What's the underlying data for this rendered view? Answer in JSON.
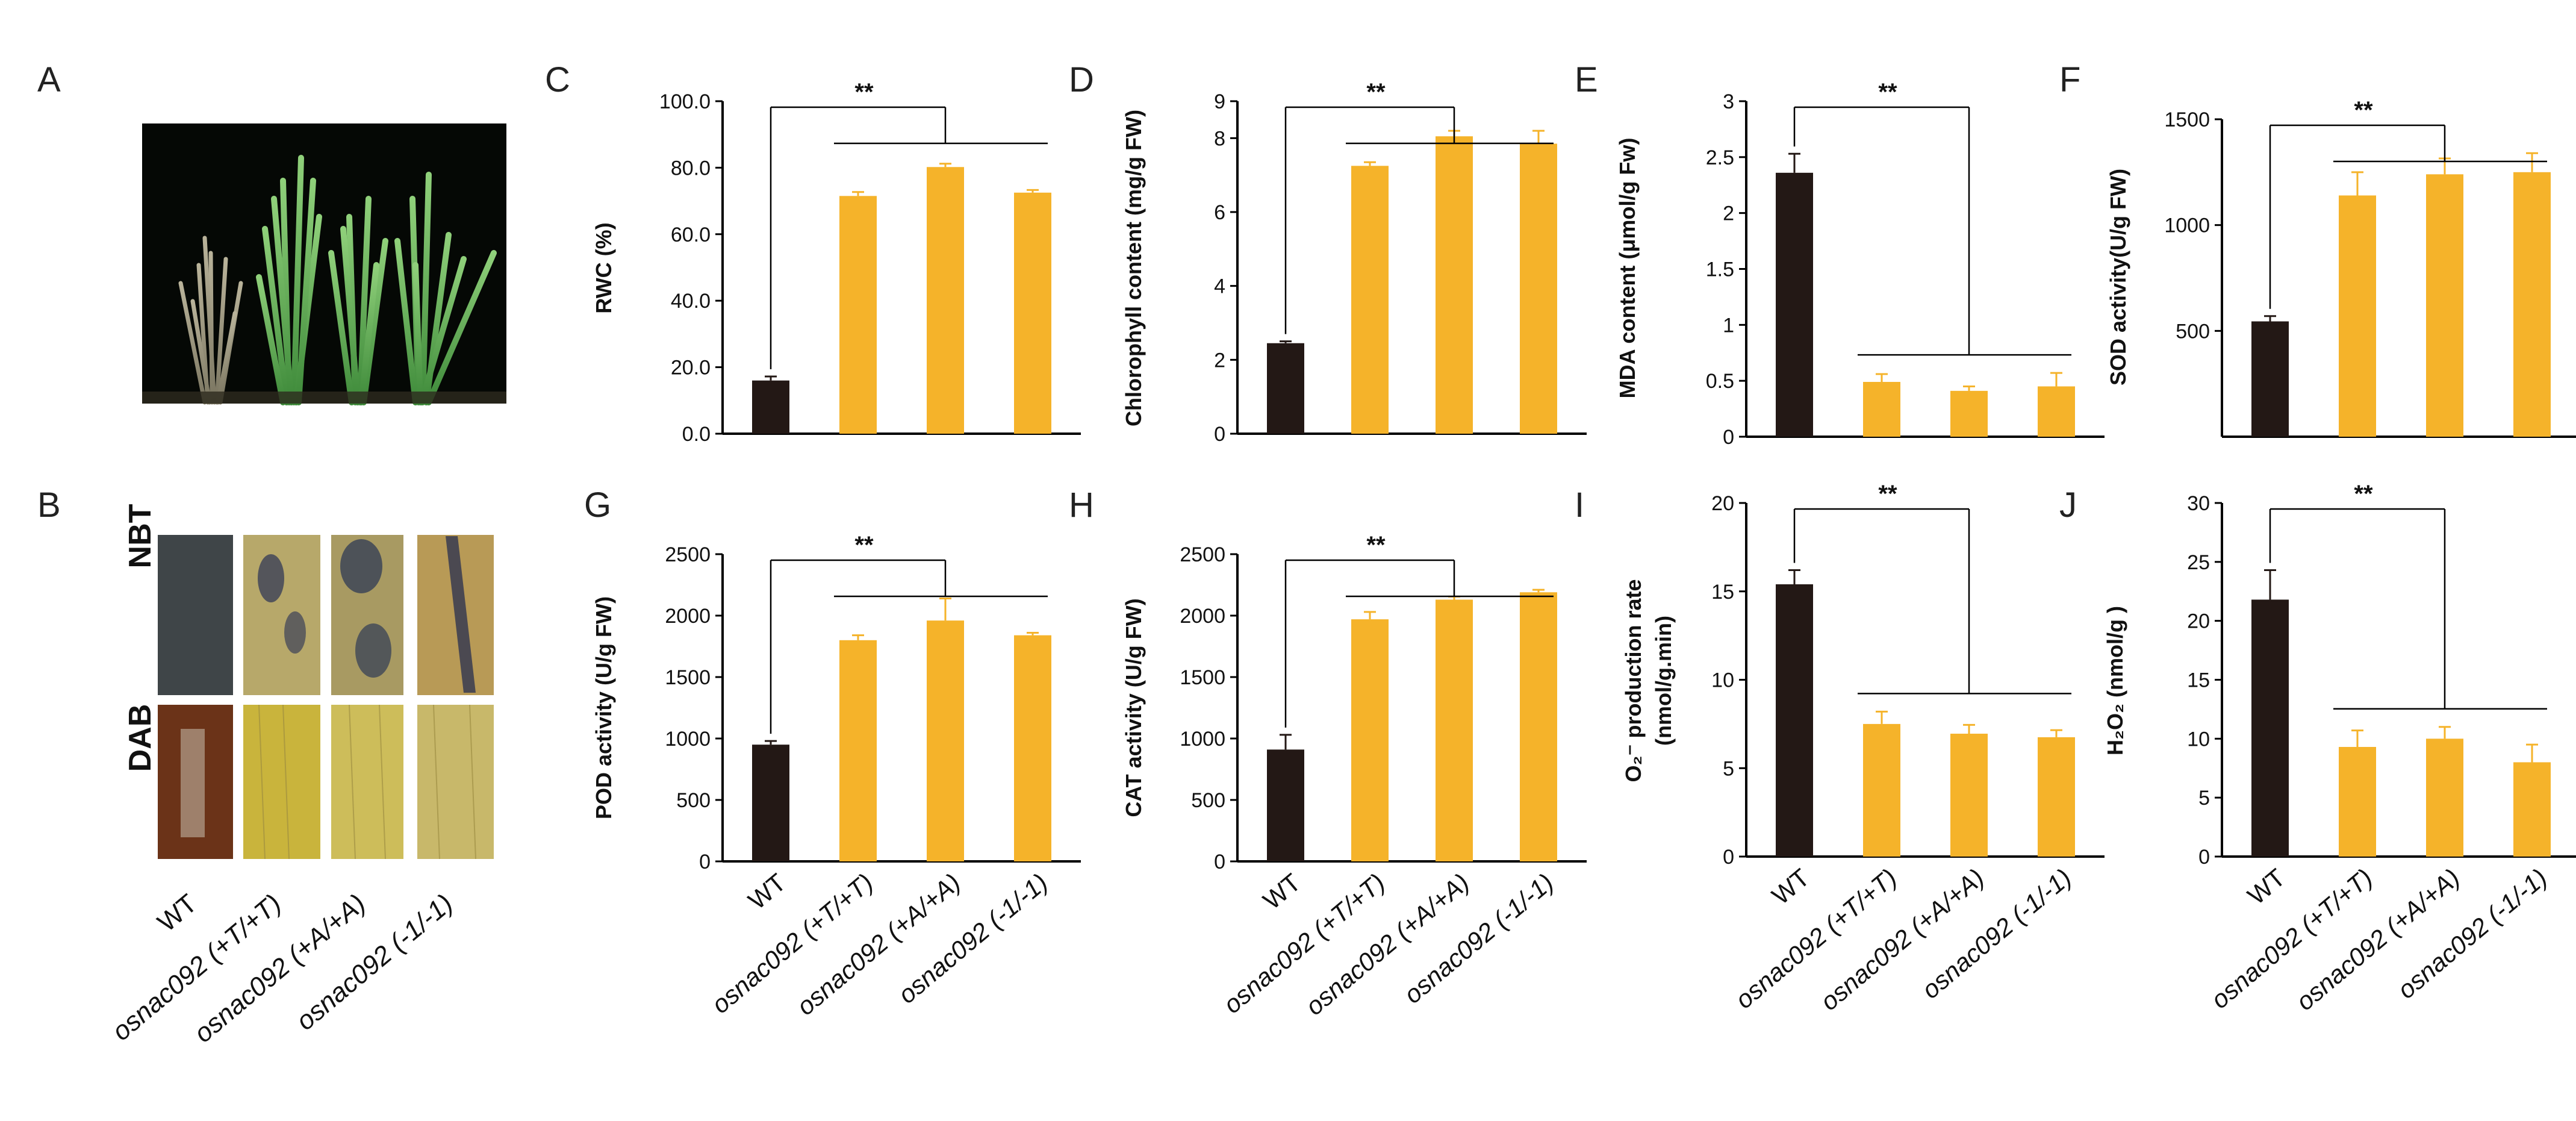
{
  "panel_letters": [
    "A",
    "B",
    "C",
    "D",
    "E",
    "F",
    "G",
    "H",
    "I",
    "J"
  ],
  "stain_labels": [
    "NBT",
    "DAB"
  ],
  "significance": "**",
  "categories": [
    "WT",
    "osnac092 (+T/+T)",
    "osnac092 (+A/+A)",
    "osnac092 (-1/-1)"
  ],
  "colors": {
    "wt": "#231815",
    "mutant": "#F5B32A",
    "axis": "#000000"
  },
  "chart_data": [
    {
      "panel": "C",
      "type": "bar",
      "categories": [
        "WT",
        "osnac092 (+T/+T)",
        "osnac092 (+A/+A)",
        "osnac092 (-1/-1)"
      ],
      "values": [
        16.0,
        71.5,
        80.2,
        72.5
      ],
      "errors": [
        1.2,
        1.2,
        1.0,
        0.8
      ],
      "ylabel": "RWC  (%)",
      "ylim": [
        0,
        100
      ],
      "ticks": [
        "0.0",
        "20.0",
        "40.0",
        "60.0",
        "80.0",
        "100.0"
      ],
      "annotation": "**"
    },
    {
      "panel": "D",
      "type": "bar",
      "categories": [
        "WT",
        "osnac092 (+T/+T)",
        "osnac092 (+A/+A)",
        "osnac092 (-1/-1)"
      ],
      "values": [
        2.45,
        7.25,
        8.05,
        7.85
      ],
      "errors": [
        0.05,
        0.1,
        0.15,
        0.35
      ],
      "ylabel": "Chlorophyll  content  (mg/g FW)",
      "ylim": [
        0,
        9
      ],
      "ticks": [
        "0",
        "2",
        "4",
        "6",
        "8",
        "9"
      ],
      "annotation": "**"
    },
    {
      "panel": "E",
      "type": "bar",
      "categories": [
        "WT",
        "osnac092 (+T/+T)",
        "osnac092 (+A/+A)",
        "osnac092 (-1/-1)"
      ],
      "values": [
        2.36,
        0.49,
        0.41,
        0.45
      ],
      "errors": [
        0.17,
        0.07,
        0.04,
        0.12
      ],
      "ylabel": "MDA  content  (μmol/g Fw)",
      "ylim": [
        0,
        3
      ],
      "ticks": [
        "0",
        "0.5",
        "1",
        "1.5",
        "2",
        "2.5",
        "3"
      ],
      "annotation": "**"
    },
    {
      "panel": "F",
      "type": "bar",
      "categories": [
        "WT",
        "osnac092 (+T/+T)",
        "osnac092 (+A/+A)",
        "osnac092 (-1/-1)"
      ],
      "values": [
        545,
        1140,
        1240,
        1250
      ],
      "errors": [
        25,
        110,
        75,
        90
      ],
      "ylabel": "SOD  activity(U/g  FW)",
      "ylim": [
        0,
        1500
      ],
      "ticks": [
        "500",
        "1000",
        "1500"
      ],
      "annotation": "**"
    },
    {
      "panel": "G",
      "type": "bar",
      "categories": [
        "WT",
        "osnac092 (+T/+T)",
        "osnac092 (+A/+A)",
        "osnac092 (-1/-1)"
      ],
      "values": [
        950,
        1800,
        1960,
        1840
      ],
      "errors": [
        30,
        40,
        180,
        20
      ],
      "ylabel": "POD  activity  (U/g  FW)",
      "ylim": [
        0,
        2500
      ],
      "ticks": [
        "0",
        "500",
        "1000",
        "1500",
        "2000",
        "2500"
      ],
      "annotation": "**"
    },
    {
      "panel": "H",
      "type": "bar",
      "categories": [
        "WT",
        "osnac092 (+T/+T)",
        "osnac092 (+A/+A)",
        "osnac092 (-1/-1)"
      ],
      "values": [
        910,
        1970,
        2130,
        2190
      ],
      "errors": [
        120,
        60,
        25,
        20
      ],
      "ylabel": "CAT  activity   (U/g  FW)",
      "ylim": [
        0,
        2500
      ],
      "ticks": [
        "0",
        "500",
        "1000",
        "1500",
        "2000",
        "2500"
      ],
      "annotation": "**"
    },
    {
      "panel": "I",
      "type": "bar",
      "categories": [
        "WT",
        "osnac092 (+T/+T)",
        "osnac092 (+A/+A)",
        "osnac092 (-1/-1)"
      ],
      "values": [
        15.4,
        7.5,
        6.95,
        6.75
      ],
      "errors": [
        0.8,
        0.7,
        0.5,
        0.4
      ],
      "ylabel": "O₂⁻ production rate",
      "ylabel2": "(nmol/g.min)",
      "ylim": [
        0,
        20
      ],
      "ticks": [
        "0",
        "5",
        "10",
        "15",
        "20"
      ],
      "annotation": "**"
    },
    {
      "panel": "J",
      "type": "bar",
      "categories": [
        "WT",
        "osnac092 (+T/+T)",
        "osnac092 (+A/+A)",
        "osnac092 (-1/-1)"
      ],
      "values": [
        21.8,
        9.3,
        10.0,
        8.0
      ],
      "errors": [
        2.5,
        1.4,
        1.0,
        1.5
      ],
      "ylabel": "H₂O₂    (nmol/g )",
      "ylim": [
        0,
        30
      ],
      "ticks": [
        "0",
        "5",
        "10",
        "15",
        "20",
        "25",
        "30"
      ],
      "annotation": "**"
    }
  ]
}
